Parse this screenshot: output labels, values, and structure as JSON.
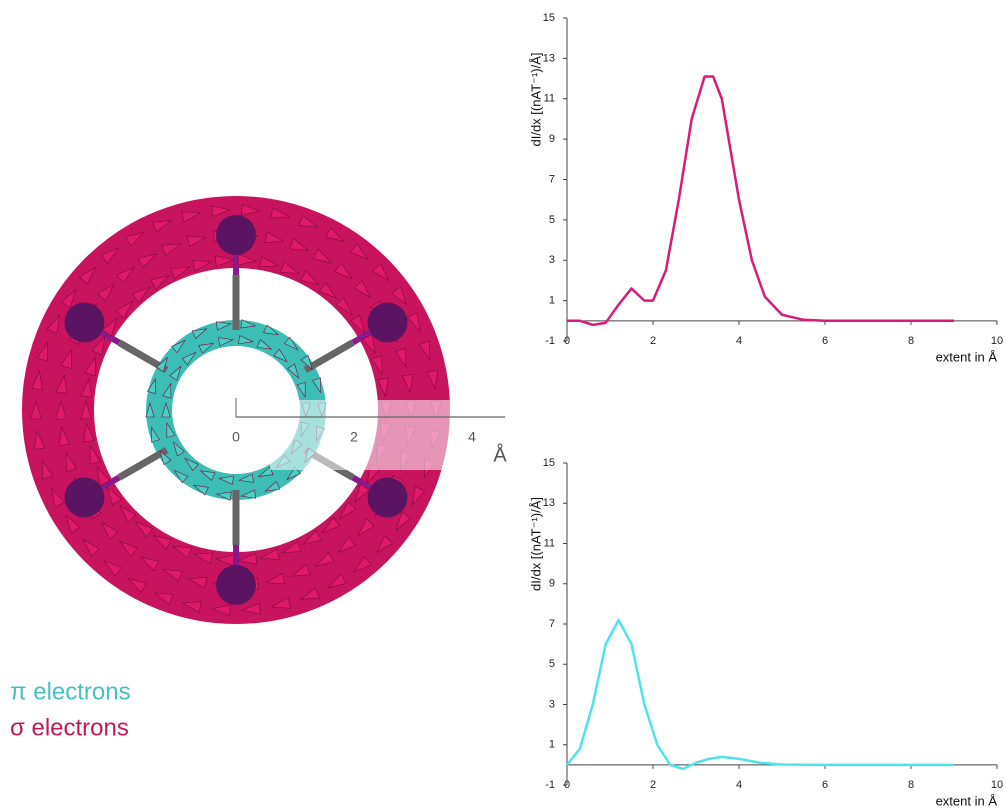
{
  "chart_data": [
    {
      "type": "line",
      "x": [
        0,
        0.3,
        0.6,
        0.9,
        1.2,
        1.5,
        1.8,
        2.0,
        2.3,
        2.6,
        2.9,
        3.2,
        3.4,
        3.6,
        3.8,
        4.0,
        4.3,
        4.6,
        5.0,
        5.5,
        6,
        7,
        8,
        9
      ],
      "series": [
        {
          "name": "σ electrons",
          "color": "#d81b7a",
          "values": [
            0,
            0,
            -0.2,
            -0.1,
            0.8,
            1.6,
            1.0,
            1.0,
            2.5,
            6,
            10,
            12.1,
            12.1,
            11,
            8.5,
            6,
            3,
            1.2,
            0.3,
            0.05,
            0,
            0,
            0,
            0
          ]
        }
      ],
      "xlabel": "extent in Å",
      "ylabel": "dI/dx [(nAT⁻¹)/Å]",
      "xlim": [
        0,
        10
      ],
      "xticks": [
        0,
        2,
        4,
        6,
        8,
        10
      ],
      "ylim": [
        -1,
        15
      ],
      "yticks": [
        -1,
        1,
        3,
        5,
        7,
        9,
        11,
        13,
        15
      ]
    },
    {
      "type": "line",
      "x": [
        0,
        0.3,
        0.6,
        0.9,
        1.2,
        1.5,
        1.8,
        2.1,
        2.4,
        2.7,
        3.0,
        3.3,
        3.6,
        4.0,
        4.5,
        5,
        6,
        7,
        8,
        9
      ],
      "series": [
        {
          "name": "π electrons",
          "color": "#4fe3ea",
          "values": [
            0,
            0.8,
            3,
            6,
            7.2,
            6,
            3,
            1,
            0,
            -0.2,
            0.1,
            0.3,
            0.4,
            0.3,
            0.1,
            0.02,
            0,
            0,
            0,
            0
          ]
        }
      ],
      "xlabel": "extent in Å",
      "ylabel": "dI/dx [(nAT⁻¹)/Å]",
      "xlim": [
        0,
        10
      ],
      "xticks": [
        0,
        2,
        4,
        6,
        8,
        10
      ],
      "ylim": [
        -1,
        15
      ],
      "yticks": [
        -1,
        1,
        3,
        5,
        7,
        9,
        11,
        13,
        15
      ]
    }
  ],
  "diagram": {
    "axis_ticks": [
      0,
      2,
      4
    ],
    "axis_unit": "Å",
    "legend": [
      "π electrons",
      "σ electrons"
    ]
  }
}
